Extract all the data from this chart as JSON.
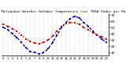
{
  "title": "Milwaukee Weather Outdoor Temperature (vs) THSW Index per Hour (Last 24 Hours)",
  "hours": [
    0,
    1,
    2,
    3,
    4,
    5,
    6,
    7,
    8,
    9,
    10,
    11,
    12,
    13,
    14,
    15,
    16,
    17,
    18,
    19,
    20,
    21,
    22,
    23
  ],
  "temp": [
    55,
    52,
    48,
    44,
    38,
    32,
    28,
    25,
    24,
    26,
    30,
    36,
    44,
    52,
    56,
    58,
    57,
    55,
    50,
    46,
    42,
    38,
    35,
    32
  ],
  "thsw": [
    50,
    46,
    40,
    34,
    26,
    18,
    12,
    10,
    8,
    10,
    16,
    26,
    38,
    50,
    58,
    64,
    68,
    65,
    58,
    52,
    44,
    38,
    32,
    26
  ],
  "temp_color": "#cc0000",
  "thsw_color": "#0000cc",
  "bg_color": "#ffffff",
  "grid_color": "#999999",
  "ylim_min": 5,
  "ylim_max": 72,
  "ytick_values": [
    10,
    20,
    30,
    40,
    50,
    60,
    70
  ],
  "ytick_labels": [
    "10",
    "20",
    "30",
    "40",
    "50",
    "60",
    "70"
  ],
  "xtick_values": [
    0,
    1,
    2,
    3,
    4,
    5,
    6,
    7,
    8,
    9,
    10,
    11,
    12,
    13,
    14,
    15,
    16,
    17,
    18,
    19,
    20,
    21,
    22,
    23
  ],
  "xtick_labels": [
    "0",
    "1",
    "2",
    "3",
    "4",
    "5",
    "6",
    "7",
    "8",
    "9",
    "10",
    "11",
    "12",
    "13",
    "14",
    "15",
    "16",
    "17",
    "18",
    "19",
    "20",
    "21",
    "22",
    "23"
  ],
  "vgrid_positions": [
    0,
    1,
    2,
    3,
    4,
    5,
    6,
    7,
    8,
    9,
    10,
    11,
    12,
    13,
    14,
    15,
    16,
    17,
    18,
    19,
    20,
    21,
    22,
    23
  ],
  "line_width": 1.0,
  "marker_size": 2.0,
  "title_fontsize": 3.2,
  "tick_fontsize": 3.2
}
